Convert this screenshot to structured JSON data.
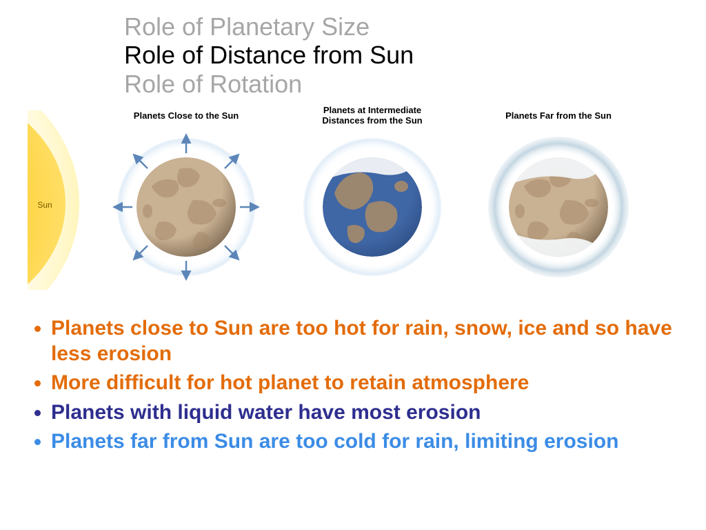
{
  "titles": [
    {
      "text": "Role of Planetary Size",
      "color": "#a6a6a6"
    },
    {
      "text": "Role of Distance from Sun",
      "color": "#000000"
    },
    {
      "text": "Role of Rotation",
      "color": "#a6a6a6"
    }
  ],
  "title_fontsize": 36,
  "diagram": {
    "sun": {
      "label": "Sun",
      "fill": "#ffd23f",
      "glow": "#ffe985",
      "label_color": "#7a5b00",
      "label_fontsize": 12
    },
    "labels": {
      "close": "Planets Close to the Sun",
      "intermediate": "Planets at Intermediate\nDistances from the Sun",
      "far": "Planets Far from the Sun",
      "fontsize": 13,
      "color": "#000000"
    },
    "planets": {
      "radius": 72,
      "rock_light": "#c9b193",
      "rock_dark": "#a5896a",
      "shadow": "#6d5a45",
      "water": "#3f66a5",
      "water_deep": "#2b4a7e",
      "ice": "#f2f4f7",
      "haze": "#dbe9f6",
      "escape_arrow": "#5c86b8",
      "cold_tint": "#bcd1de"
    }
  },
  "bullets": [
    {
      "text": "Planets close to Sun are too hot for rain, snow, ice and so have less erosion",
      "text_color": "#e36c0a",
      "marker_color": "#e36c0a"
    },
    {
      "text": "More difficult for hot planet to retain atmosphere",
      "text_color": "#e36c0a",
      "marker_color": "#e36c0a"
    },
    {
      "text": "Planets with liquid water have most erosion",
      "text_color": "#2e2e8f",
      "marker_color": "#2e2e8f"
    },
    {
      "text": "Planets far from Sun are too cold for rain, limiting erosion",
      "text_color": "#3b8ce6",
      "marker_color": "#3b8ce6"
    }
  ],
  "bullet_fontsize": 30,
  "background_color": "#ffffff"
}
